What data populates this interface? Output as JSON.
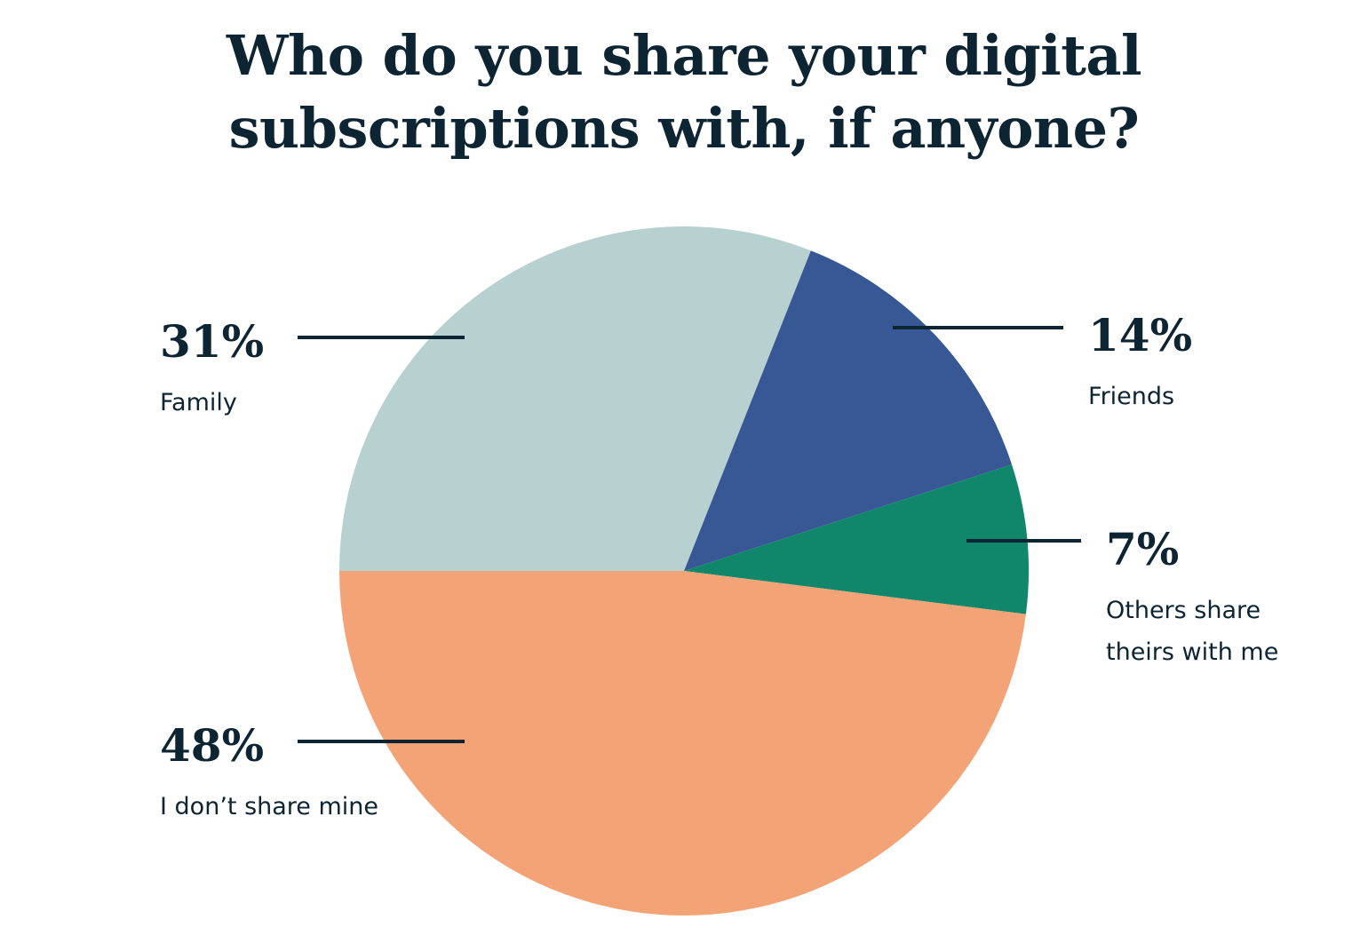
{
  "chart_data": {
    "type": "pie",
    "title_lines": [
      "Who do you share your digital",
      "subscriptions with, if anyone?"
    ],
    "start": "left",
    "direction": "clockwise",
    "slices": [
      {
        "label": "Family",
        "label_lines": [
          "Family"
        ],
        "value": 31,
        "value_label": "31%",
        "color": "#b7d1d0",
        "side": "left"
      },
      {
        "label": "Friends",
        "label_lines": [
          "Friends"
        ],
        "value": 14,
        "value_label": "14%",
        "color": "#375894",
        "side": "right"
      },
      {
        "label": "Others share theirs with me",
        "label_lines": [
          "Others share",
          "theirs with me"
        ],
        "value": 7,
        "value_label": "7%",
        "color": "#10866a",
        "side": "right"
      },
      {
        "label": "I don’t share mine",
        "label_lines": [
          "I don’t share mine"
        ],
        "value": 48,
        "value_label": "48%",
        "color": "#f4a376",
        "side": "left"
      }
    ]
  }
}
